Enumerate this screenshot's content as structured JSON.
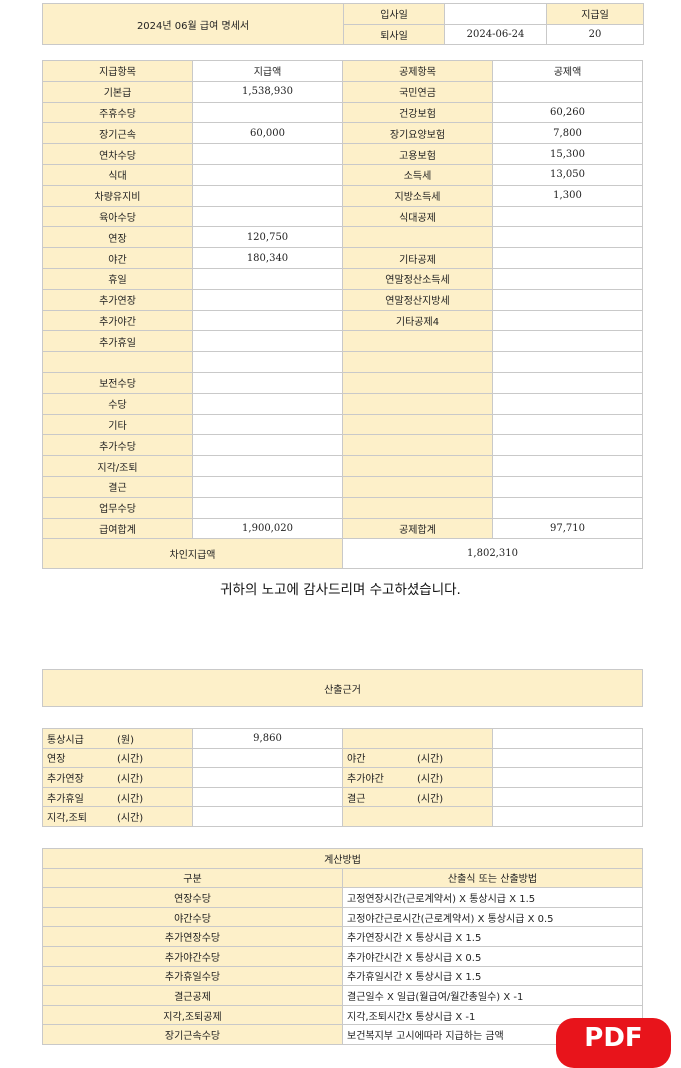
{
  "header": {
    "title": "2024년 06월 급여 명세서",
    "hire_label": "입사일",
    "hire_value": "",
    "leave_label": "퇴사일",
    "leave_value": "2024-06-24",
    "payday_label": "지급일",
    "payday_value": "20"
  },
  "main": {
    "headers": [
      "지급항목",
      "지급액",
      "공제항목",
      "공제액"
    ],
    "rows": [
      [
        "기본급",
        "1,538,930",
        "국민연금",
        ""
      ],
      [
        "주휴수당",
        "",
        "건강보험",
        "60,260"
      ],
      [
        "장기근속",
        "60,000",
        "장기요양보험",
        "7,800"
      ],
      [
        "연차수당",
        "",
        "고용보험",
        "15,300"
      ],
      [
        "식대",
        "",
        "소득세",
        "13,050"
      ],
      [
        "차량유지비",
        "",
        "지방소득세",
        "1,300"
      ],
      [
        "육아수당",
        "",
        "식대공제",
        ""
      ],
      [
        "연장",
        "120,750",
        "",
        ""
      ],
      [
        "야간",
        "180,340",
        "기타공제",
        ""
      ],
      [
        "휴일",
        "",
        "연말정산소득세",
        ""
      ],
      [
        "추가연장",
        "",
        "연말정산지방세",
        ""
      ],
      [
        "추가야간",
        "",
        "기타공제4",
        ""
      ],
      [
        "추가휴일",
        "",
        "",
        ""
      ],
      [
        "",
        "",
        "",
        ""
      ],
      [
        "보전수당",
        "",
        "",
        ""
      ],
      [
        "수당",
        "",
        "",
        ""
      ],
      [
        "기타",
        "",
        "",
        ""
      ],
      [
        "추가수당",
        "",
        "",
        ""
      ],
      [
        "지각/조퇴",
        "",
        "",
        ""
      ],
      [
        "결근",
        "",
        "",
        ""
      ],
      [
        "업무수당",
        "",
        "",
        ""
      ],
      [
        "급여합계",
        "1,900,020",
        "공제합계",
        "97,710"
      ]
    ],
    "net_label": "차인지급액",
    "net_value": "1,802,310"
  },
  "message": "귀하의 노고에 감사드리며 수고하셨습니다.",
  "basis_title": "산출근거",
  "hours": {
    "rows": [
      [
        "통상시급",
        "(원)",
        "9,860",
        "",
        "",
        ""
      ],
      [
        "연장",
        "(시간)",
        "",
        "야간",
        "(시간)",
        ""
      ],
      [
        "추가연장",
        "(시간)",
        "",
        "추가야간",
        "(시간)",
        ""
      ],
      [
        "추가휴일",
        "(시간)",
        "",
        "결근",
        "(시간)",
        ""
      ],
      [
        "지각,조퇴",
        "(시간)",
        "",
        "",
        "",
        ""
      ]
    ]
  },
  "method": {
    "title": "계산방법",
    "headers": [
      "구분",
      "산출식 또는 산출방법"
    ],
    "rows": [
      [
        "연장수당",
        "고정연장시간(근로계약서) X 통상시급 X 1.5"
      ],
      [
        "야간수당",
        "고정야간근로시간(근로계약서) X 통상시급 X 0.5"
      ],
      [
        "추가연장수당",
        "추가연장시간 X 통상시급 X 1.5"
      ],
      [
        "추가야간수당",
        "추가야간시간 X 통상시급 X 0.5"
      ],
      [
        "추가휴일수당",
        "추가휴일시간 X 통상시급 X 1.5"
      ],
      [
        "결근공제",
        "결근일수 X 일급(월급여/월간총일수) X -1"
      ],
      [
        "지각,조퇴공제",
        "지각,조퇴시간X 통상시급 X -1"
      ],
      [
        "장기근속수당",
        "보건복지부 고시에따라 지급하는 금액"
      ]
    ]
  },
  "badge": {
    "label": "PDF",
    "color": "#e8141b"
  }
}
